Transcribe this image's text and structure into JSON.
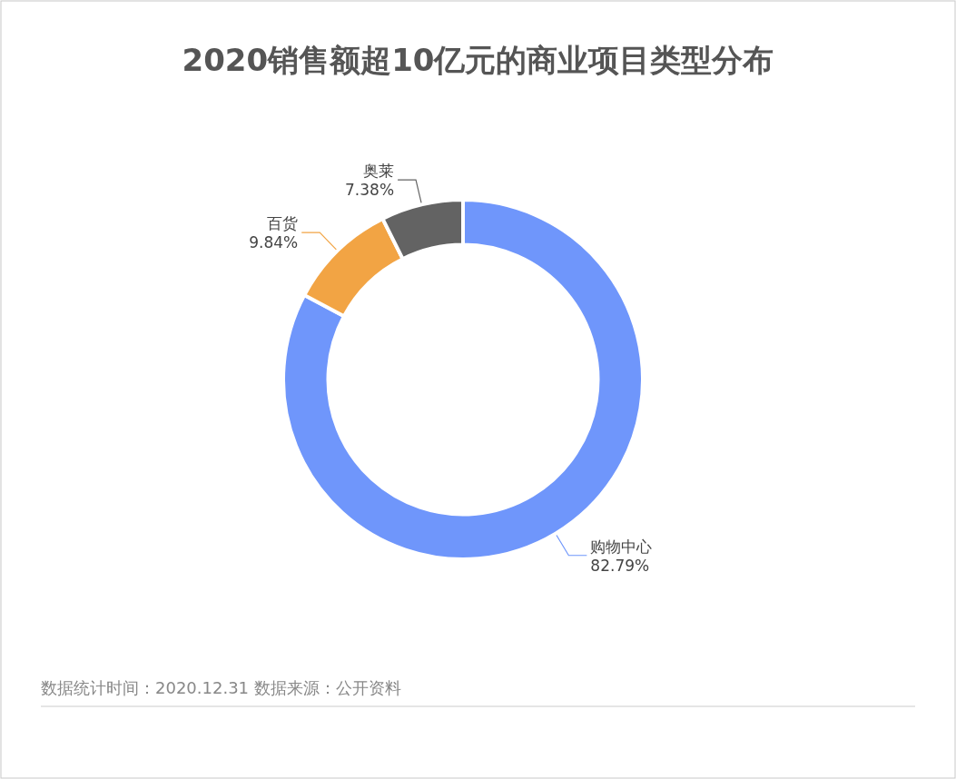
{
  "chart_data": {
    "type": "donut",
    "title": "2020销售额超10亿元的商业项目类型分布",
    "categories": [
      "购物中心",
      "百货",
      "奥莱"
    ],
    "values": [
      82.79,
      9.84,
      7.38
    ],
    "colors": [
      "#6f96fb",
      "#f2a444",
      "#636363"
    ],
    "value_labels": [
      "82.79%",
      "9.84%",
      "7.38%"
    ],
    "annotations": [
      "数据统计时间：2020.12.31  数据来源：公开资料"
    ]
  }
}
